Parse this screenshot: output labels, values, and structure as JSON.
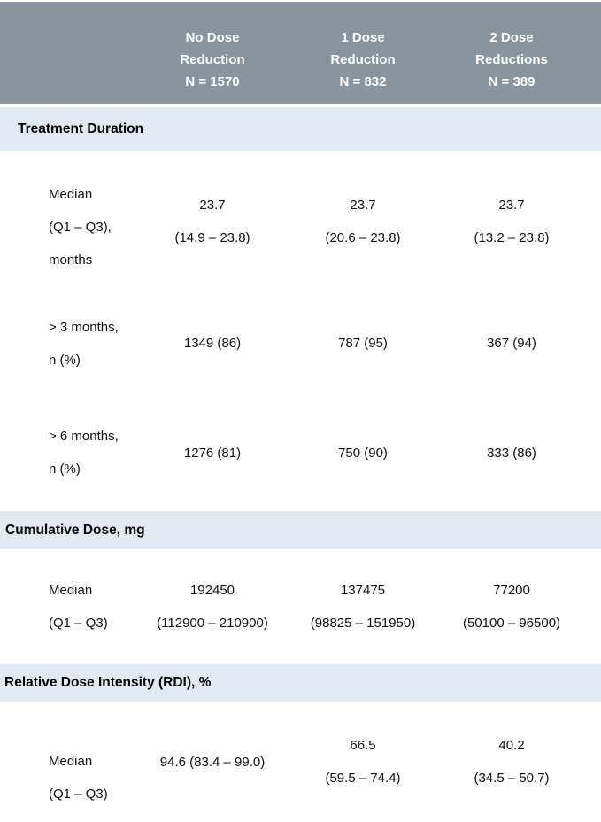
{
  "header": {
    "columns": [
      {
        "lines": [
          "No Dose",
          "Reduction",
          "N = 1570"
        ]
      },
      {
        "lines": [
          "1 Dose",
          "Reduction",
          "N = 832"
        ]
      },
      {
        "lines": [
          "2 Dose",
          "Reductions",
          "N = 389"
        ]
      }
    ]
  },
  "sections": [
    {
      "title": "Treatment Duration",
      "rows": [
        {
          "label_lines": [
            "Median",
            "(Q1 – Q3),",
            "months"
          ],
          "values": [
            [
              "23.7",
              "(14.9 – 23.8)"
            ],
            [
              "23.7",
              "(20.6 – 23.8)"
            ],
            [
              "23.7",
              "(13.2 – 23.8)"
            ]
          ]
        },
        {
          "label_lines": [
            "> 3 months,",
            "n (%)"
          ],
          "values": [
            [
              "1349 (86)"
            ],
            [
              "787 (95)"
            ],
            [
              "367 (94)"
            ]
          ]
        },
        {
          "label_lines": [
            "> 6 months,",
            "n (%)"
          ],
          "values": [
            [
              "1276 (81)"
            ],
            [
              "750 (90)"
            ],
            [
              "333 (86)"
            ]
          ]
        }
      ]
    },
    {
      "title": "Cumulative Dose, mg",
      "rows": [
        {
          "label_lines": [
            "Median",
            "(Q1 – Q3)"
          ],
          "values": [
            [
              "192450",
              "(112900 – 210900)"
            ],
            [
              "137475",
              "(98825 – 151950)"
            ],
            [
              "77200",
              "(50100 – 96500)"
            ]
          ]
        }
      ]
    },
    {
      "title": "Relative Dose Intensity (RDI), %",
      "rows": [
        {
          "label_lines": [
            "Median",
            "(Q1 – Q3)"
          ],
          "values": [
            [
              "94.6 (83.4 – 99.0)"
            ],
            [
              "66.5",
              "(59.5 – 74.4)"
            ],
            [
              "40.2",
              "(34.5 – 50.7)"
            ]
          ]
        }
      ]
    }
  ],
  "colors": {
    "header_bg": "#8A949D",
    "section_bg": "#E2E9F1",
    "header_text": "#FFFFFF",
    "body_text": "#111111"
  }
}
